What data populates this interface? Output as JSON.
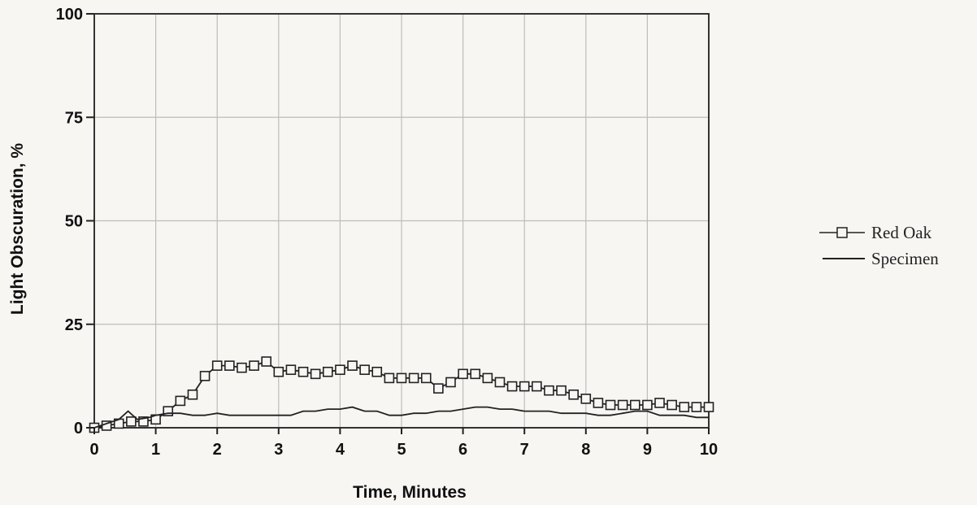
{
  "chart_data": {
    "type": "line",
    "xlabel": "Time,  Minutes",
    "ylabel": "Light Obscuration, %",
    "xlim": [
      0,
      10
    ],
    "ylim": [
      0,
      100
    ],
    "x_ticks": [
      "0",
      "1",
      "2",
      "3",
      "4",
      "5",
      "6",
      "7",
      "8",
      "9",
      "10"
    ],
    "y_ticks": [
      "0",
      "25",
      "50",
      "75",
      "100"
    ],
    "x_grid_step": 1,
    "y_grid_step": 25,
    "grid": true,
    "legend_position": "right",
    "series": [
      {
        "name": "Red Oak",
        "marker": "square",
        "color": "#222222",
        "x": [
          0.0,
          0.2,
          0.4,
          0.6,
          0.8,
          1.0,
          1.2,
          1.4,
          1.6,
          1.8,
          2.0,
          2.2,
          2.4,
          2.6,
          2.8,
          3.0,
          3.2,
          3.4,
          3.6,
          3.8,
          4.0,
          4.2,
          4.4,
          4.6,
          4.8,
          5.0,
          5.2,
          5.4,
          5.6,
          5.8,
          6.0,
          6.2,
          6.4,
          6.6,
          6.8,
          7.0,
          7.2,
          7.4,
          7.6,
          7.8,
          8.0,
          8.2,
          8.4,
          8.6,
          8.8,
          9.0,
          9.2,
          9.4,
          9.6,
          9.8,
          10.0
        ],
        "y": [
          0,
          0.5,
          1,
          1.5,
          1.5,
          2,
          4,
          6.5,
          8,
          12.5,
          15,
          15,
          14.5,
          15,
          16,
          13.5,
          14,
          13.5,
          13,
          13.5,
          14,
          15,
          14,
          13.5,
          12,
          12,
          12,
          12,
          9.5,
          11,
          13,
          13,
          12,
          11,
          10,
          10,
          10,
          9,
          9,
          8,
          7,
          6,
          5.5,
          5.5,
          5.5,
          5.5,
          6,
          5.5,
          5,
          5,
          5
        ]
      },
      {
        "name": "Specimen",
        "marker": "none",
        "color": "#222222",
        "x": [
          0.0,
          0.2,
          0.4,
          0.55,
          0.7,
          0.9,
          1.0,
          1.2,
          1.4,
          1.6,
          1.8,
          2.0,
          2.2,
          2.4,
          2.6,
          2.8,
          3.0,
          3.2,
          3.4,
          3.6,
          3.8,
          4.0,
          4.2,
          4.4,
          4.6,
          4.8,
          5.0,
          5.2,
          5.4,
          5.6,
          5.8,
          6.0,
          6.2,
          6.4,
          6.6,
          6.8,
          7.0,
          7.2,
          7.4,
          7.6,
          7.8,
          8.0,
          8.2,
          8.4,
          8.6,
          8.8,
          9.0,
          9.2,
          9.4,
          9.6,
          9.8,
          10.0
        ],
        "y": [
          0,
          1,
          2,
          4,
          2,
          2.5,
          3,
          3.5,
          3.5,
          3,
          3,
          3.5,
          3,
          3,
          3,
          3,
          3,
          3,
          4,
          4,
          4.5,
          4.5,
          5,
          4,
          4,
          3,
          3,
          3.5,
          3.5,
          4,
          4,
          4.5,
          5,
          5,
          4.5,
          4.5,
          4,
          4,
          4,
          3.5,
          3.5,
          3.5,
          3,
          3,
          3.5,
          4,
          4,
          3,
          3,
          3,
          2.5,
          2.5
        ]
      }
    ]
  },
  "legend": {
    "items": [
      "Red Oak",
      "Specimen"
    ]
  }
}
